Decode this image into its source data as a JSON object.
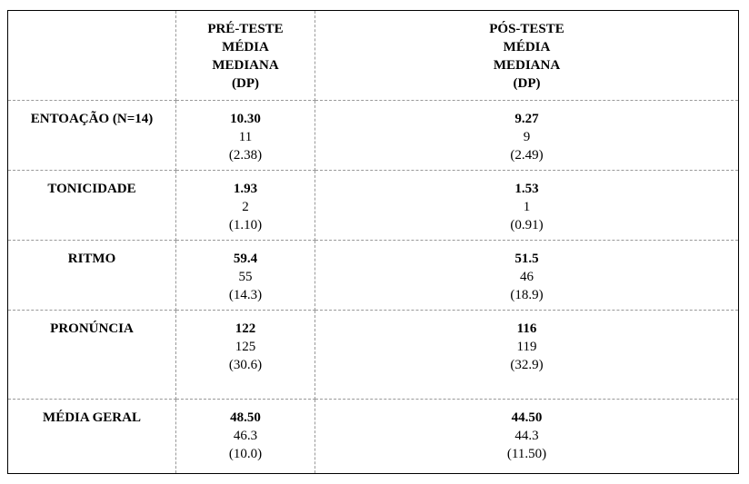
{
  "table": {
    "columns": [
      {
        "lines": [
          "PRÉ-TESTE",
          "MÉDIA",
          "MEDIANA",
          "(DP)"
        ]
      },
      {
        "lines": [
          "PÓS-TESTE",
          "MÉDIA",
          "MEDIANA",
          "(DP)"
        ]
      }
    ],
    "rows": [
      {
        "label": "ENTOAÇÃO (N=14)",
        "cells": [
          [
            "10.30",
            "11",
            "(2.38)"
          ],
          [
            "9.27",
            "9",
            "(2.49)"
          ]
        ]
      },
      {
        "label": "TONICIDADE",
        "cells": [
          [
            "1.93",
            "2",
            "(1.10)"
          ],
          [
            "1.53",
            "1",
            "(0.91)"
          ]
        ]
      },
      {
        "label": "RITMO",
        "cells": [
          [
            "59.4",
            "55",
            "(14.3)"
          ],
          [
            "51.5",
            "46",
            "(18.9)"
          ]
        ]
      },
      {
        "label": "PRONÚNCIA",
        "cells": [
          [
            "122",
            "125",
            "(30.6)"
          ],
          [
            "116",
            "119",
            "(32.9)"
          ]
        ]
      },
      {
        "label": "MÉDIA GERAL",
        "cells": [
          [
            "48.50",
            "46.3",
            "(10.0)"
          ],
          [
            "44.50",
            "44.3",
            "(11.50)"
          ]
        ]
      }
    ]
  }
}
